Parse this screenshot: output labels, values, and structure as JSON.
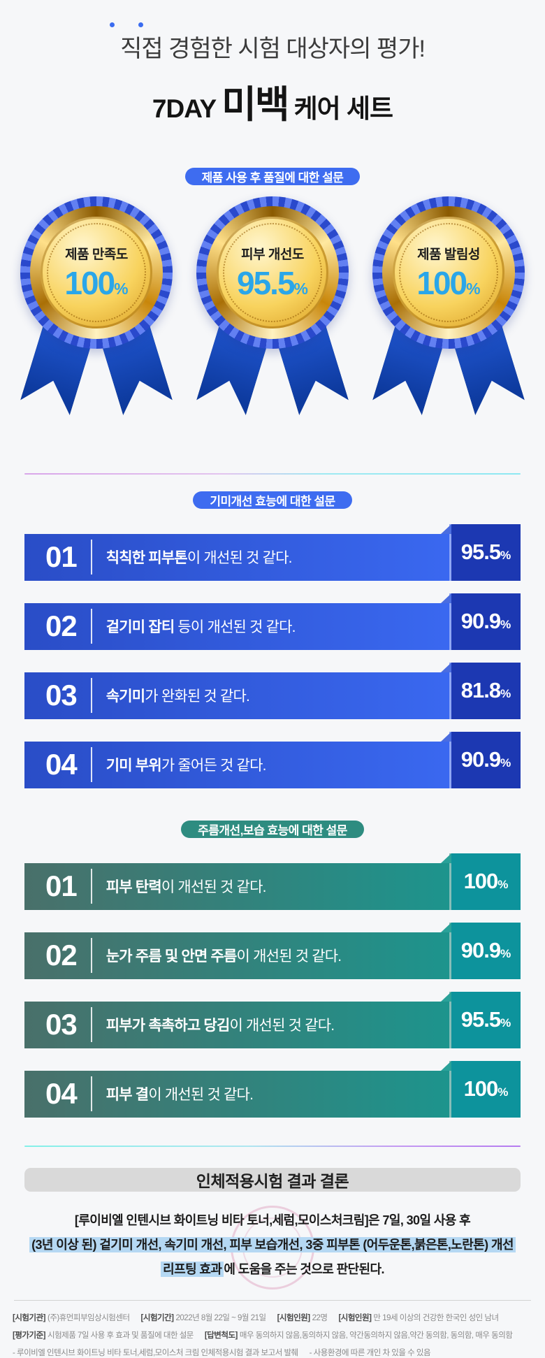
{
  "header": {
    "subtitle": "직접 경험한 시험 대상자의 평가!",
    "title_prefix": "7DAY",
    "title_highlight": "미백",
    "title_suffix": "케어 세트"
  },
  "quality_section": {
    "pill_label": "제품 사용 후 품질에 대한 설문",
    "medals": [
      {
        "label": "제품 만족도",
        "value": "100",
        "unit": "%"
      },
      {
        "label": "피부 개선도",
        "value": "95.5",
        "unit": "%"
      },
      {
        "label": "제품 발림성",
        "value": "100",
        "unit": "%"
      }
    ]
  },
  "blemish_section": {
    "pill_label": "기미개선 효능에 대한 설문",
    "items": [
      {
        "no": "01",
        "bold": "칙칙한 피부톤",
        "rest": "이 개선된 것 같다.",
        "value": "95.5",
        "unit": "%"
      },
      {
        "no": "02",
        "bold": "겉기미 잡티",
        "rest": " 등이 개선된 것 같다.",
        "value": "90.9",
        "unit": "%"
      },
      {
        "no": "03",
        "bold": "속기미",
        "rest": "가 완화된 것 같다.",
        "value": "81.8",
        "unit": "%"
      },
      {
        "no": "04",
        "bold": "기미 부위",
        "rest": "가 줄어든 것 같다.",
        "value": "90.9",
        "unit": "%"
      }
    ]
  },
  "wrinkle_section": {
    "pill_label": "주름개선,보습 효능에 대한 설문",
    "items": [
      {
        "no": "01",
        "bold": "피부 탄력",
        "rest": "이 개선된 것 같다.",
        "value": "100",
        "unit": "%"
      },
      {
        "no": "02",
        "bold": "눈가 주름 및 안면 주름",
        "rest": "이 개선된 것 같다.",
        "value": "90.9",
        "unit": "%"
      },
      {
        "no": "03",
        "bold": "피부가 촉촉하고 당김",
        "rest": "이 개선된 것 같다.",
        "value": "95.5",
        "unit": "%"
      },
      {
        "no": "04",
        "bold": "피부 결",
        "rest": "이 개선된 것 같다.",
        "value": "100",
        "unit": "%"
      }
    ]
  },
  "conclusion": {
    "banner": "인체적용시험 결과 결론",
    "line1": "[루이비엘 인텐시브 화이트닝 비타 토너,세럼,모이스처크림]은 7일, 30일 사용 후",
    "line2_highlight": "(3년 이상 된) 겉기미 개선, 속기미 개선, 피부 보습개선, 3중 피부톤 (어두운톤,붉은톤,노란톤) 개선",
    "line3_highlight": "리프팅 효과",
    "line3_rest": "에 도움을 주는 것으로 판단된다."
  },
  "footer": {
    "row1": [
      {
        "label": "[시험기관]",
        "text": "(주)휴먼피부임상시험센터"
      },
      {
        "label": "[시험기간]",
        "text": "2022년 8월 22일 ~ 9월 21일"
      },
      {
        "label": "[시험인원]",
        "text": "22명"
      },
      {
        "label": "[시험인원]",
        "text": "만 19세 이상의 건강한 한국인 성인 남녀"
      }
    ],
    "row2": [
      {
        "label": "[평가기준]",
        "text": "시험제품 7일 사용 후 효과 및 품질에 대한 설문"
      },
      {
        "label": "[답변척도]",
        "text": "매우 동의하지 않음,동의하지 않음, 약간동의하지 않음,약간 동의함, 동의함, 매우 동의함"
      }
    ],
    "row3": [
      {
        "text": "- 루이비엘 인텐시브 화이트닝 비타 토너,세럼,모이스처 크림 인체적용시험 결과 보고서 발췌"
      },
      {
        "text": "- 사용환경에 따른 개인 차 있을 수 있음"
      }
    ]
  },
  "colors": {
    "accent_blue": "#3e6cf0",
    "bar_tab_blue": "#1c38b2",
    "accent_teal": "#2e8c80",
    "bar_tab_teal": "#0d939c",
    "medal_number_blue": "#2aa6e9",
    "highlight_blue": "#b5d8f3",
    "background": "#f6f7f9"
  },
  "chart_data": [
    {
      "type": "bar",
      "title": "제품 사용 후 품질에 대한 설문",
      "categories": [
        "제품 만족도",
        "피부 개선도",
        "제품 발림성"
      ],
      "values": [
        100,
        95.5,
        100
      ],
      "ylabel": "%",
      "ylim": [
        0,
        100
      ],
      "legend": false
    },
    {
      "type": "bar",
      "title": "기미개선 효능에 대한 설문",
      "categories": [
        "칙칙한 피부톤이 개선된 것 같다.",
        "겉기미 잡티 등이 개선된 것 같다.",
        "속기미가 완화된 것 같다.",
        "기미 부위가 줄어든 것 같다."
      ],
      "values": [
        95.5,
        90.9,
        81.8,
        90.9
      ],
      "ylabel": "%",
      "ylim": [
        0,
        100
      ],
      "legend": false
    },
    {
      "type": "bar",
      "title": "주름개선,보습 효능에 대한 설문",
      "categories": [
        "피부 탄력이 개선된 것 같다.",
        "눈가 주름 및 안면 주름이 개선된 것 같다.",
        "피부가 촉촉하고 당김이 개선된 것 같다.",
        "피부 결이 개선된 것 같다."
      ],
      "values": [
        100,
        90.9,
        95.5,
        100
      ],
      "ylabel": "%",
      "ylim": [
        0,
        100
      ],
      "legend": false
    }
  ]
}
